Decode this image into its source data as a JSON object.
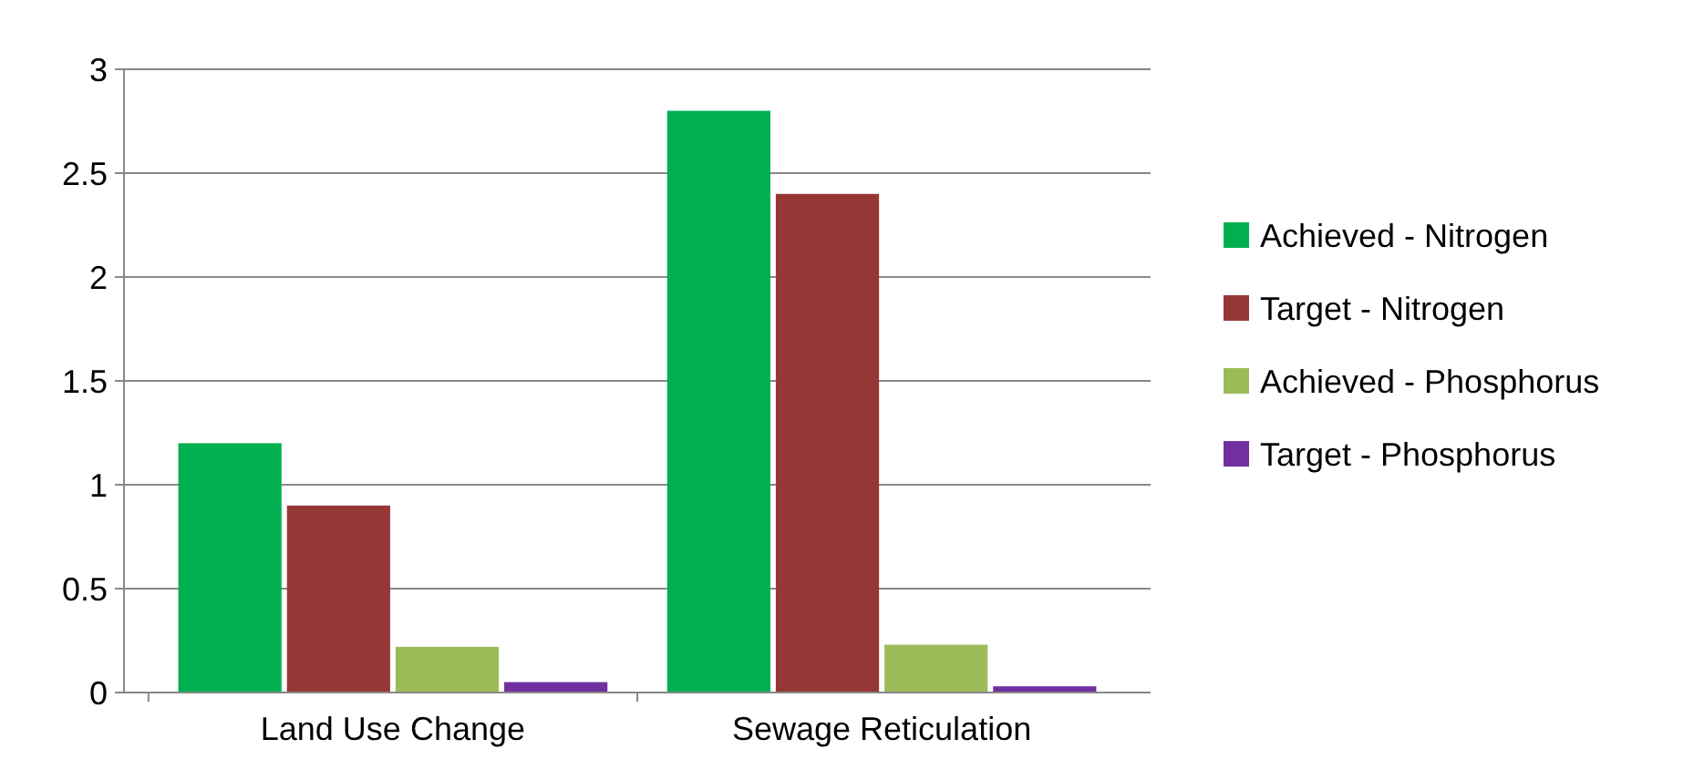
{
  "chart_data": {
    "type": "bar",
    "categories": [
      "Land Use Change",
      "Sewage Reticulation"
    ],
    "series": [
      {
        "name": "Achieved - Nitrogen",
        "color": "#00b050",
        "values": [
          1.2,
          2.8
        ]
      },
      {
        "name": "Target - Nitrogen",
        "color": "#953735",
        "values": [
          0.9,
          2.4
        ]
      },
      {
        "name": "Achieved - Phosphorus",
        "color": "#9bbb59",
        "values": [
          0.22,
          0.23
        ]
      },
      {
        "name": "Target - Phosphorus",
        "color": "#7030a0",
        "values": [
          0.05,
          0.03
        ]
      }
    ],
    "ylim": [
      0,
      3
    ],
    "yticks": [
      0,
      0.5,
      1,
      1.5,
      2,
      2.5,
      3
    ],
    "grid": true,
    "legend": "right"
  }
}
